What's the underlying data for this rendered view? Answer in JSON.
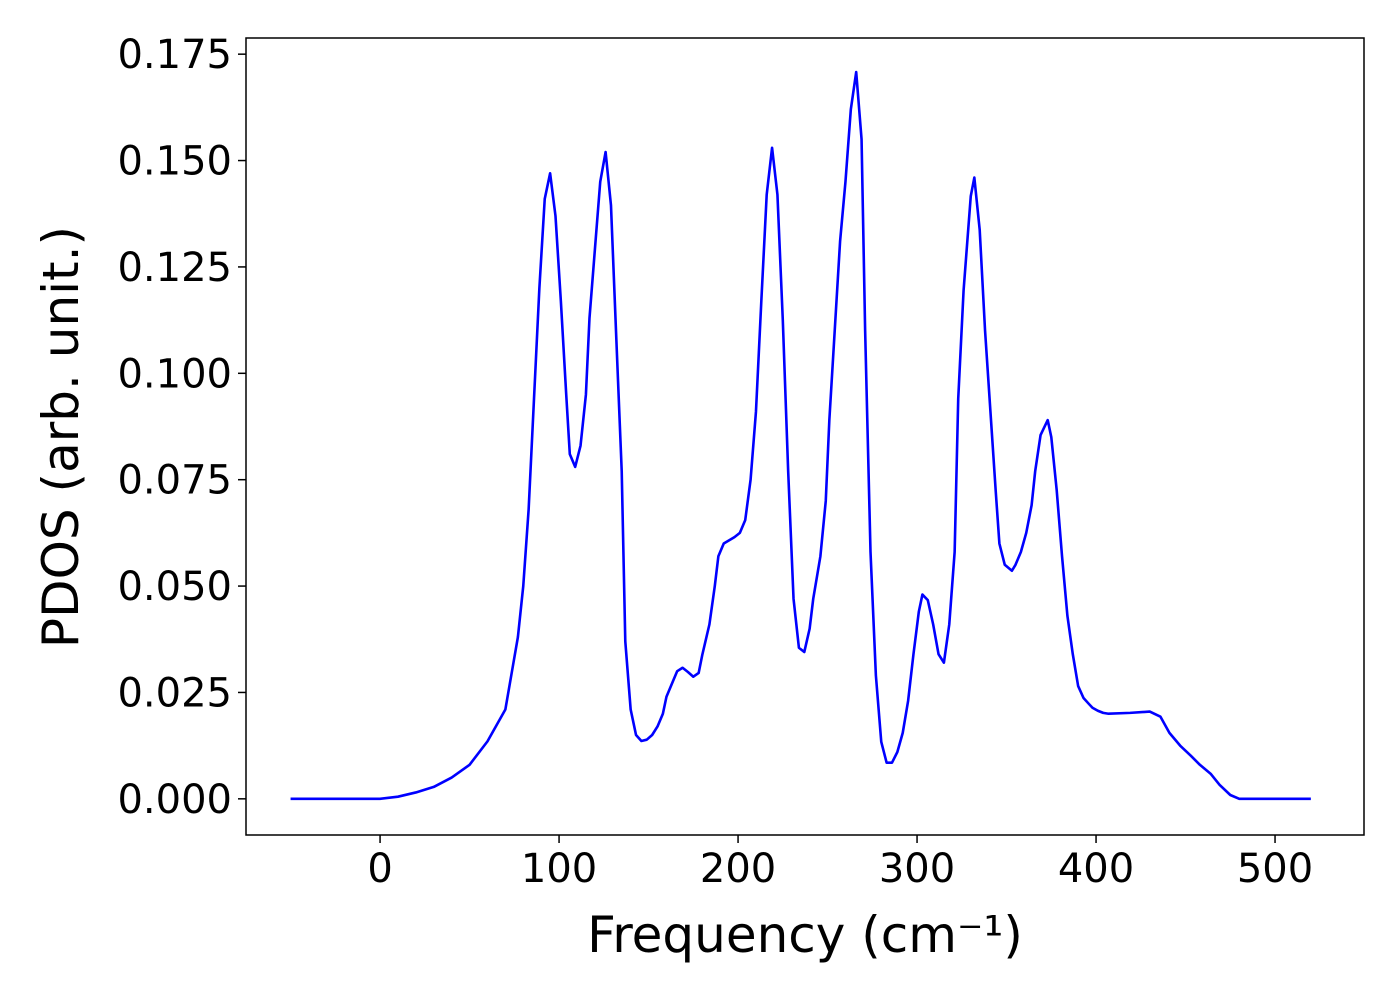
{
  "chart_data": {
    "type": "line",
    "xlabel": "Frequency (cm⁻¹)",
    "ylabel": "PDOS (arb. unit.)",
    "xlim": [
      -74.9,
      549.7
    ],
    "ylim": [
      -0.0085,
      0.1788
    ],
    "xticks": [
      0,
      100,
      200,
      300,
      400,
      500
    ],
    "yticks": [
      {
        "value": 0,
        "label": "0.000"
      },
      {
        "value": 0.025,
        "label": "0.025"
      },
      {
        "value": 0.05,
        "label": "0.050"
      },
      {
        "value": 0.075,
        "label": "0.075"
      },
      {
        "value": 0.1,
        "label": "0.100"
      },
      {
        "value": 0.125,
        "label": "0.125"
      },
      {
        "value": 0.15,
        "label": "0.150"
      },
      {
        "value": 0.175,
        "label": "0.175"
      }
    ],
    "grid": false,
    "x": [
      -50,
      0,
      10,
      20,
      30,
      40,
      50,
      60,
      70,
      73.7,
      77,
      80,
      83,
      86,
      89,
      92,
      95,
      98,
      101,
      104,
      106,
      109,
      112,
      115,
      117,
      120,
      123,
      126,
      129,
      132,
      135,
      137,
      140,
      143,
      146,
      149,
      152,
      155,
      158,
      160,
      164,
      166,
      169,
      172,
      175,
      178,
      180,
      184,
      187,
      189,
      192,
      196,
      198,
      201,
      204,
      207,
      210,
      213,
      216,
      219,
      222,
      225,
      228,
      231,
      234,
      237,
      240,
      242,
      246,
      249,
      251,
      254,
      257,
      260,
      263,
      266,
      269,
      271,
      274,
      277,
      280,
      283,
      286,
      289,
      292,
      295,
      298,
      301,
      303,
      306,
      309,
      312,
      315,
      318,
      321,
      323,
      326,
      330,
      332,
      335,
      338,
      341,
      344,
      346,
      349,
      353,
      355,
      358,
      361,
      364,
      366,
      369,
      373,
      375,
      378,
      381,
      384,
      387,
      390,
      393,
      396,
      398,
      401,
      404,
      407,
      419,
      430,
      436,
      441,
      447,
      453,
      458,
      464,
      469,
      475,
      480,
      520
    ],
    "series": [
      {
        "name": "PDOS",
        "color": "#0000ff",
        "values": [
          0,
          0,
          0.0005,
          0.0015,
          0.0028,
          0.005,
          0.008,
          0.0135,
          0.021,
          0.03,
          0.038,
          0.05,
          0.068,
          0.094,
          0.12,
          0.141,
          0.147,
          0.137,
          0.117,
          0.095,
          0.081,
          0.078,
          0.083,
          0.095,
          0.113,
          0.129,
          0.145,
          0.152,
          0.1395,
          0.108,
          0.077,
          0.037,
          0.021,
          0.015,
          0.0136,
          0.0139,
          0.015,
          0.017,
          0.02,
          0.024,
          0.028,
          0.03,
          0.0308,
          0.0298,
          0.0287,
          0.0296,
          0.0338,
          0.041,
          0.05,
          0.057,
          0.06,
          0.061,
          0.0615,
          0.0625,
          0.0655,
          0.075,
          0.091,
          0.117,
          0.142,
          0.153,
          0.142,
          0.1125,
          0.077,
          0.047,
          0.0355,
          0.0345,
          0.04,
          0.047,
          0.057,
          0.07,
          0.089,
          0.11,
          0.131,
          0.145,
          0.162,
          0.1708,
          0.155,
          0.11,
          0.058,
          0.029,
          0.0134,
          0.0085,
          0.0085,
          0.011,
          0.0155,
          0.023,
          0.034,
          0.044,
          0.048,
          0.0467,
          0.041,
          0.034,
          0.032,
          0.041,
          0.058,
          0.094,
          0.1195,
          0.1416,
          0.146,
          0.1337,
          0.11,
          0.091,
          0.072,
          0.06,
          0.055,
          0.0536,
          0.055,
          0.058,
          0.0625,
          0.069,
          0.077,
          0.0855,
          0.089,
          0.085,
          0.0726,
          0.057,
          0.043,
          0.034,
          0.0265,
          0.0237,
          0.0223,
          0.0214,
          0.0207,
          0.0202,
          0.02,
          0.0202,
          0.0205,
          0.0193,
          0.0155,
          0.0125,
          0.0101,
          0.008,
          0.0059,
          0.0033,
          0.0009,
          0,
          0
        ]
      }
    ]
  }
}
